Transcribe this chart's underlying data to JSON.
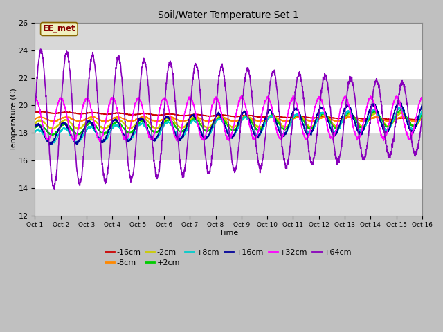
{
  "title": "Soil/Water Temperature Set 1",
  "xlabel": "Time",
  "ylabel": "Temperature (C)",
  "ylim": [
    12,
    26
  ],
  "xlim": [
    0,
    15
  ],
  "xtick_labels": [
    "Oct 1",
    "Oct 2",
    "Oct 3",
    "Oct 4",
    "Oct 5",
    "Oct 6",
    "Oct 7",
    "Oct 8",
    "Oct 9",
    "Oct 10",
    "Oct 11",
    "Oct 12",
    "Oct 13",
    "Oct 14",
    "Oct 15",
    "Oct 16"
  ],
  "ytick_values": [
    12,
    14,
    16,
    18,
    20,
    22,
    24,
    26
  ],
  "annotation": "EE_met",
  "series": [
    {
      "label": "-16cm",
      "color": "#cc0000",
      "lw": 1.2
    },
    {
      "label": "-8cm",
      "color": "#ff8800",
      "lw": 1.2
    },
    {
      "label": "-2cm",
      "color": "#cccc00",
      "lw": 1.2
    },
    {
      "label": "+2cm",
      "color": "#00cc00",
      "lw": 1.2
    },
    {
      "label": "+8cm",
      "color": "#00cccc",
      "lw": 1.2
    },
    {
      "label": "+16cm",
      "color": "#000099",
      "lw": 1.2
    },
    {
      "label": "+32cm",
      "color": "#ff00ff",
      "lw": 1.2
    },
    {
      "label": "+64cm",
      "color": "#8800bb",
      "lw": 1.2
    }
  ]
}
